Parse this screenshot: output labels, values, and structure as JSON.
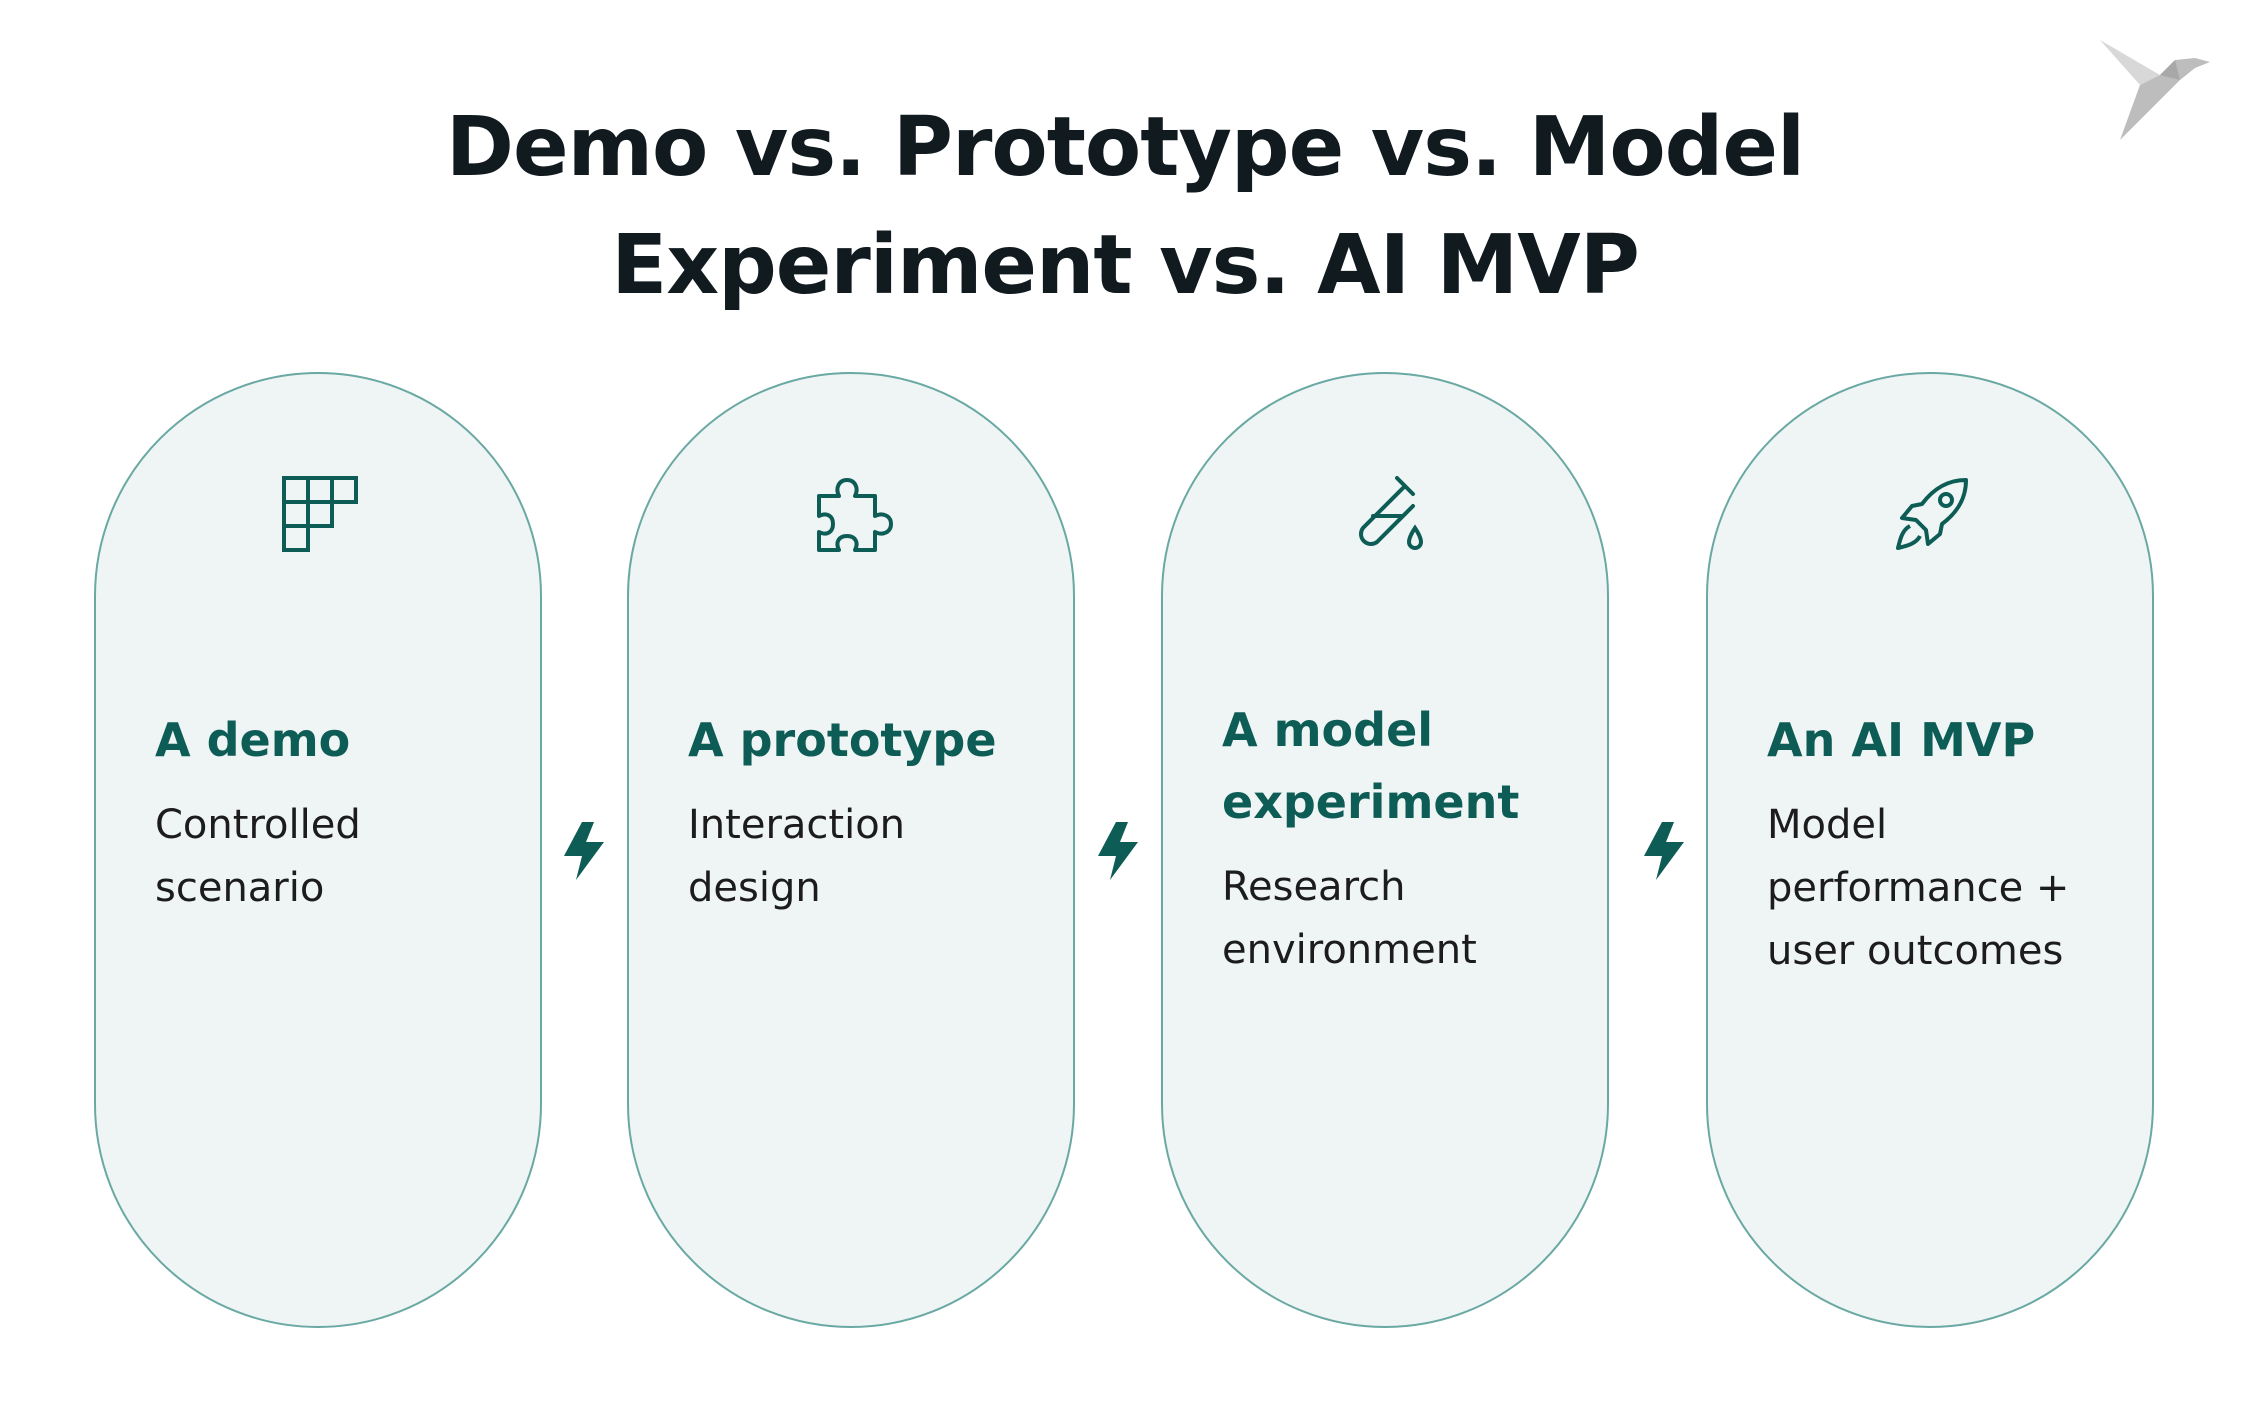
{
  "title_lines": [
    "Demo vs. Prototype vs. Model",
    "Experiment vs. AI MVP"
  ],
  "cards": [
    {
      "heading": "A demo",
      "description": "Controlled scenario"
    },
    {
      "heading": "A prototype",
      "description": "Interaction design"
    },
    {
      "heading": "A model experiment",
      "description": "Research environment"
    },
    {
      "heading": "An AI MVP",
      "description": "Model performance + user outcomes"
    }
  ]
}
